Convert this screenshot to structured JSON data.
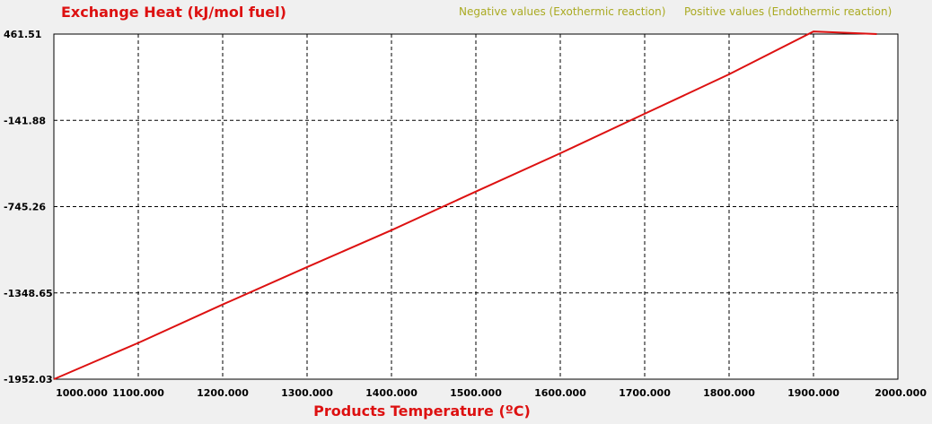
{
  "chart_data": {
    "type": "line",
    "title": "Exchange Heat (kJ/mol fuel)",
    "xlabel": "Products Temperature (ºC)",
    "ylabel": "",
    "legend": {
      "negative": "Negative values (Exothermic reaction)",
      "positive": "Positive values (Endothermic reaction)",
      "placement": "top-right"
    },
    "xlim": [
      1000,
      2000
    ],
    "ylim": [
      -1952.03,
      461.51
    ],
    "x_ticks": [
      1000,
      1100,
      1200,
      1300,
      1400,
      1500,
      1600,
      1700,
      1800,
      1900,
      2000
    ],
    "x_tick_labels": [
      "1000.000",
      "1100.000",
      "1200.000",
      "1300.000",
      "1400.000",
      "1500.000",
      "1600.000",
      "1700.000",
      "1800.000",
      "1900.000",
      "2000.000"
    ],
    "y_ticks": [
      461.51,
      -141.88,
      -745.26,
      -1348.65,
      -1952.03
    ],
    "y_tick_labels": [
      "461.51",
      "-141.88",
      "-745.26",
      "-1348.65",
      "-1952.03"
    ],
    "grid": true,
    "colors": {
      "line": "#dd1111",
      "title": "#dd1111",
      "xlabel": "#dd1111",
      "legend": "#aaaa22",
      "plot_bg": "#ffffff",
      "page_bg": "#f0f0f0",
      "grid": "#000000"
    },
    "series": [
      {
        "x": [
          1000,
          1100,
          1200,
          1300,
          1400,
          1500,
          1600,
          1700,
          1800,
          1900,
          1975
        ],
        "y": [
          -1952.03,
          -1698.0,
          -1430.0,
          -1168.0,
          -910.0,
          -640.0,
          -372.0,
          -96.0,
          180.0,
          480.0,
          461.51
        ]
      }
    ]
  }
}
